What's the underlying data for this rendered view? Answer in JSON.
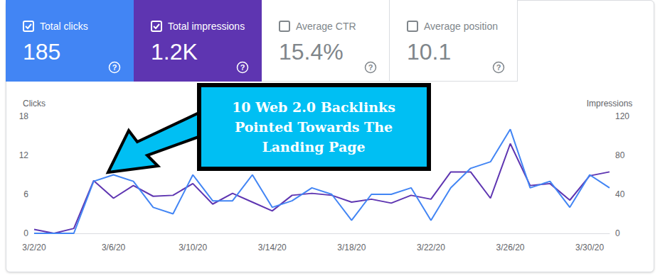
{
  "header": {
    "help_icon": "?",
    "cards": [
      {
        "label": "Total clicks",
        "value": "185",
        "checked": true,
        "color": "#4285f4"
      },
      {
        "label": "Total impressions",
        "value": "1.2K",
        "checked": true,
        "color": "#5e35b1"
      },
      {
        "label": "Average CTR",
        "value": "15.4%",
        "checked": false,
        "color": "#ffffff"
      },
      {
        "label": "Average position",
        "value": "10.1",
        "checked": false,
        "color": "#ffffff"
      }
    ]
  },
  "chart_data": {
    "type": "line",
    "annotation": {
      "lines": [
        "10 Web 2.0 Backlinks",
        "Pointed Towards The",
        "Landing Page"
      ],
      "color": "#00bff3"
    },
    "categories": [
      "3/2/20",
      null,
      null,
      null,
      "3/6/20",
      null,
      null,
      null,
      "3/10/20",
      null,
      null,
      null,
      "3/14/20",
      null,
      null,
      null,
      "3/18/20",
      null,
      null,
      null,
      "3/22/20",
      null,
      null,
      null,
      "3/26/20",
      null,
      null,
      null,
      "3/30/20",
      null
    ],
    "series": [
      {
        "name": "Clicks",
        "color": "#4285f4",
        "marker": "none",
        "line_style": "solid",
        "values": [
          0,
          0,
          0,
          8,
          9,
          8,
          4,
          3,
          9,
          5,
          5,
          9,
          4,
          5,
          7,
          6,
          2,
          6,
          6,
          7,
          2,
          7,
          10,
          11,
          16,
          7,
          8,
          4,
          9,
          7
        ]
      },
      {
        "name": "Impressions",
        "color": "#5e35b1",
        "marker": "none",
        "line_style": "solid",
        "axis": "y2",
        "values": [
          4,
          0,
          5,
          54,
          36,
          49,
          38,
          39,
          51,
          30,
          41,
          32,
          23,
          39,
          41,
          39,
          32,
          35,
          31,
          39,
          35,
          63,
          63,
          36,
          92,
          49,
          51,
          34,
          59,
          63
        ]
      }
    ],
    "ylabel": "Clicks",
    "y2label": "Impressions",
    "ylim": [
      0,
      18
    ],
    "yticks": [
      0,
      6,
      12,
      18
    ],
    "y2lim": [
      0,
      120
    ],
    "y2ticks": [
      0,
      40,
      80,
      120
    ],
    "grid": false
  }
}
